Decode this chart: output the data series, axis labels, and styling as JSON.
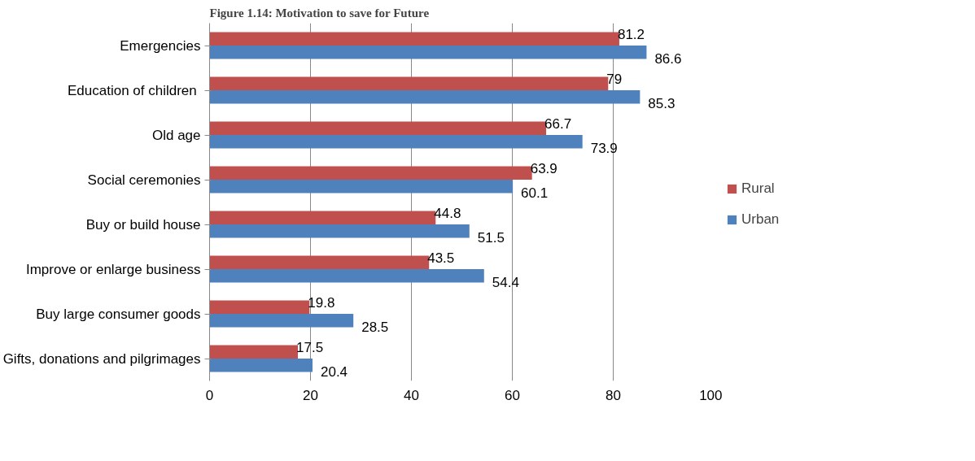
{
  "chart_data": {
    "type": "bar",
    "orientation": "horizontal",
    "title": "Figure 1.14: Motivation to save for Future",
    "categories": [
      "Emergencies",
      "Education of  children",
      "Old age",
      "Social ceremonies",
      "Buy or build house",
      "Improve or enlarge business",
      "Buy large consumer goods",
      "Gifts, donations and pilgrimages"
    ],
    "series": [
      {
        "name": "Rural",
        "color": "#c0504d",
        "values": [
          81.2,
          79,
          66.7,
          63.9,
          44.8,
          43.5,
          19.8,
          17.5
        ]
      },
      {
        "name": "Urban",
        "color": "#4f81bd",
        "values": [
          86.6,
          85.3,
          73.9,
          60.1,
          51.5,
          54.4,
          28.5,
          20.4
        ]
      }
    ],
    "xlim": [
      0,
      100
    ],
    "xticks": [
      0,
      20,
      40,
      60,
      80,
      100
    ],
    "grid": "x",
    "legend": "right",
    "data_labels": true
  }
}
